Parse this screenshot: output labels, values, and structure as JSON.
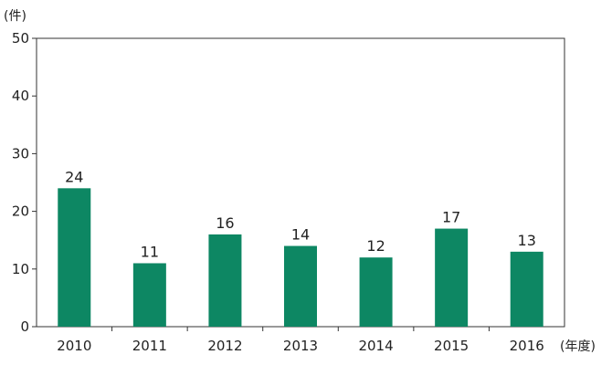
{
  "chart_data": {
    "type": "bar",
    "title": "",
    "ylabel": "(件)",
    "xlabel": "(年度)",
    "categories": [
      "2010",
      "2011",
      "2012",
      "2013",
      "2014",
      "2015",
      "2016"
    ],
    "values": [
      24,
      11,
      16,
      14,
      12,
      17,
      13
    ],
    "ylim": [
      0,
      50
    ],
    "yticks": [
      0,
      10,
      20,
      30,
      40,
      50
    ],
    "grid": false,
    "colors": {
      "bar": "#0d8763",
      "axis": "#333333"
    }
  }
}
